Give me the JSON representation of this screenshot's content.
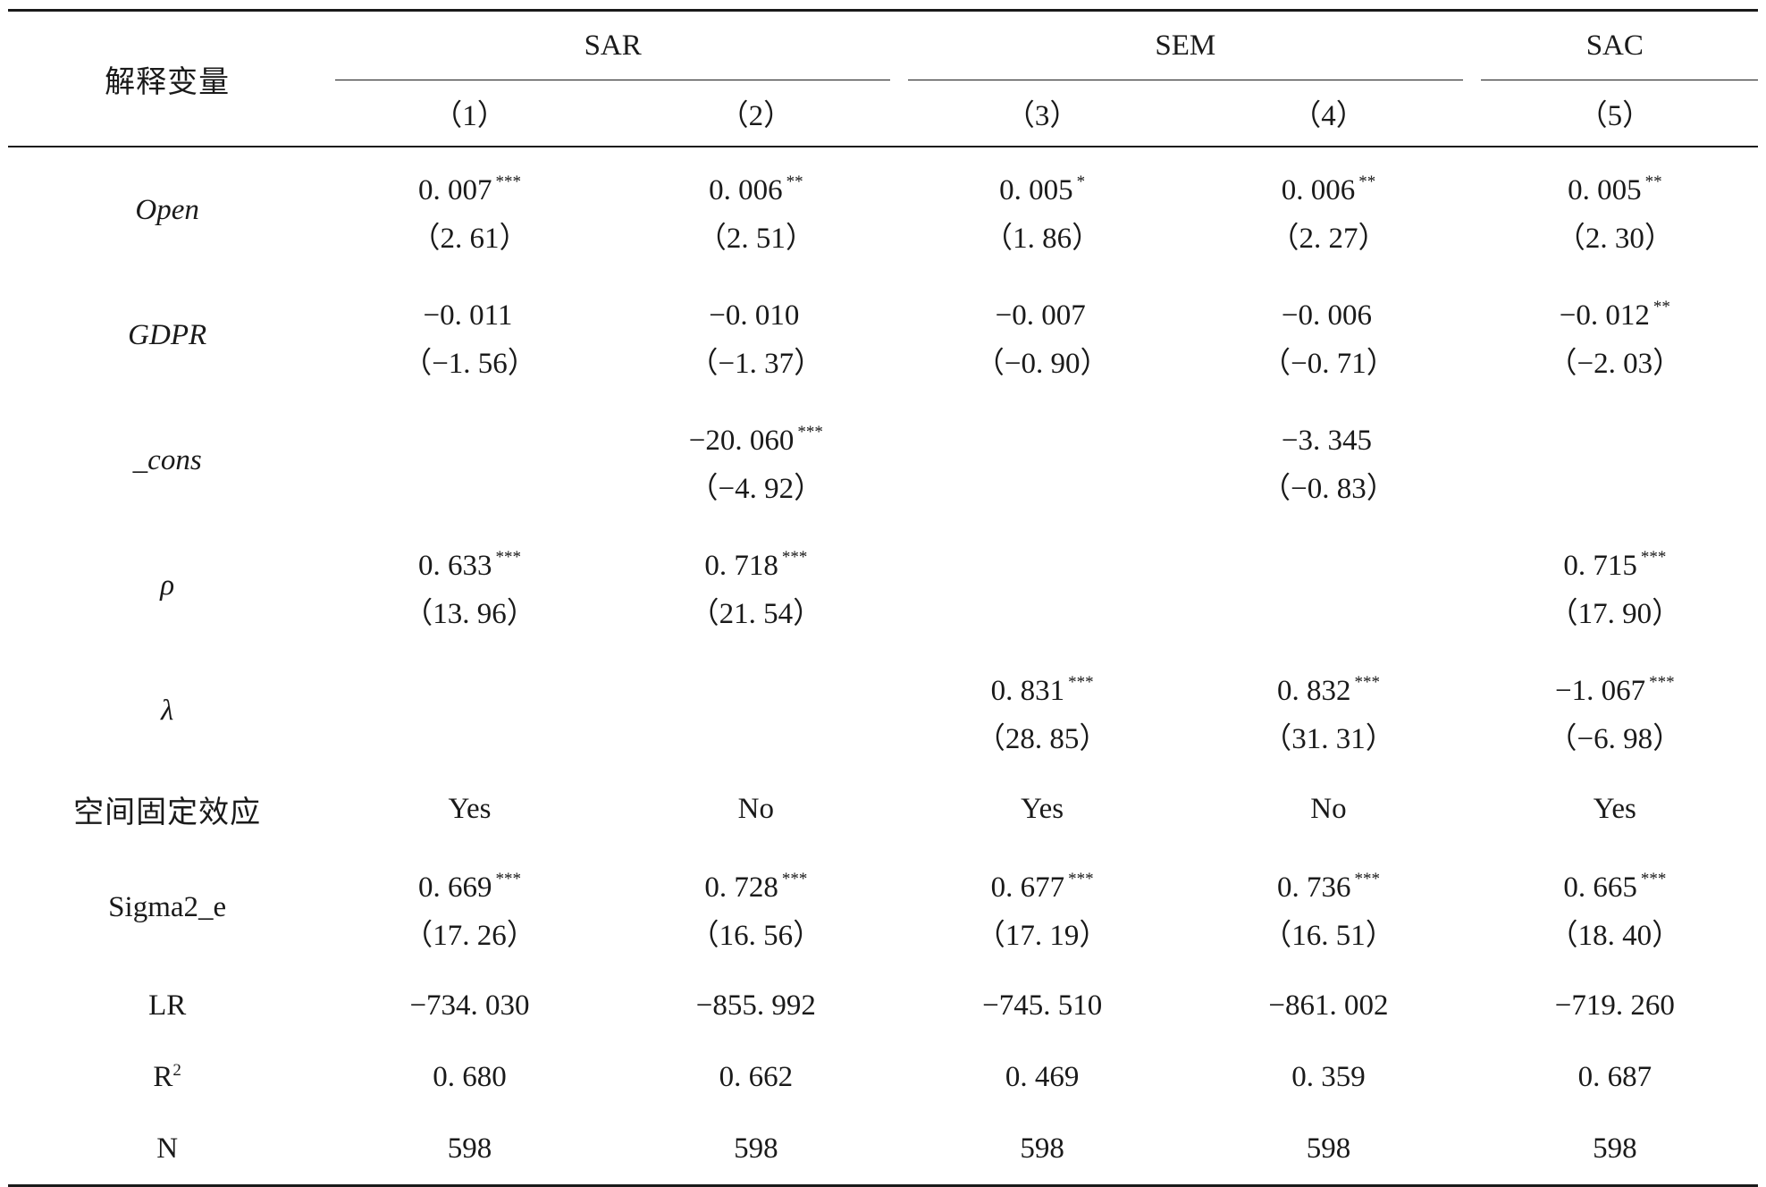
{
  "header": {
    "row_label": "解释变量",
    "groups": [
      {
        "name": "SAR",
        "cols": [
          "（1）",
          "（2）"
        ]
      },
      {
        "name": "SEM",
        "cols": [
          "（3）",
          "（4）"
        ]
      },
      {
        "name": "SAC",
        "cols": [
          "（5）"
        ]
      }
    ]
  },
  "rows": [
    {
      "label": "Open",
      "cells": [
        {
          "coef": "0. 007",
          "stars": "***",
          "t": "（2. 61）"
        },
        {
          "coef": "0. 006",
          "stars": "**",
          "t": "（2. 51）"
        },
        {
          "coef": "0. 005",
          "stars": "*",
          "t": "（1. 86）"
        },
        {
          "coef": "0. 006",
          "stars": "**",
          "t": "（2. 27）"
        },
        {
          "coef": "0. 005",
          "stars": "**",
          "t": "（2. 30）"
        }
      ]
    },
    {
      "label": "GDPR",
      "cells": [
        {
          "coef": "−0. 011",
          "stars": "",
          "t": "（−1. 56）"
        },
        {
          "coef": "−0. 010",
          "stars": "",
          "t": "（−1. 37）"
        },
        {
          "coef": "−0. 007",
          "stars": "",
          "t": "（−0. 90）"
        },
        {
          "coef": "−0. 006",
          "stars": "",
          "t": "（−0. 71）"
        },
        {
          "coef": "−0. 012",
          "stars": "**",
          "t": "（−2. 03）"
        }
      ]
    },
    {
      "label": "_cons",
      "cells": [
        {
          "coef": "",
          "stars": "",
          "t": ""
        },
        {
          "coef": "−20. 060",
          "stars": "***",
          "t": "（−4. 92）"
        },
        {
          "coef": "",
          "stars": "",
          "t": ""
        },
        {
          "coef": "−3. 345",
          "stars": "",
          "t": "（−0. 83）"
        },
        {
          "coef": "",
          "stars": "",
          "t": ""
        }
      ]
    },
    {
      "label": "ρ",
      "cells": [
        {
          "coef": "0. 633",
          "stars": "***",
          "t": "（13. 96）"
        },
        {
          "coef": "0. 718",
          "stars": "***",
          "t": "（21. 54）"
        },
        {
          "coef": "",
          "stars": "",
          "t": ""
        },
        {
          "coef": "",
          "stars": "",
          "t": ""
        },
        {
          "coef": "0. 715",
          "stars": "***",
          "t": "（17. 90）"
        }
      ]
    },
    {
      "label": "λ",
      "cells": [
        {
          "coef": "",
          "stars": "",
          "t": ""
        },
        {
          "coef": "",
          "stars": "",
          "t": ""
        },
        {
          "coef": "0. 831",
          "stars": "***",
          "t": "（28. 85）"
        },
        {
          "coef": "0. 832",
          "stars": "***",
          "t": "（31. 31）"
        },
        {
          "coef": "−1. 067",
          "stars": "***",
          "t": "（−6. 98）"
        }
      ]
    },
    {
      "label": "空间固定效应",
      "values": [
        "Yes",
        "No",
        "Yes",
        "No",
        "Yes"
      ]
    },
    {
      "label": "Sigma2_e",
      "cells": [
        {
          "coef": "0. 669",
          "stars": "***",
          "t": "（17. 26）"
        },
        {
          "coef": "0. 728",
          "stars": "***",
          "t": "（16. 56）"
        },
        {
          "coef": "0. 677",
          "stars": "***",
          "t": "（17. 19）"
        },
        {
          "coef": "0. 736",
          "stars": "***",
          "t": "（16. 51）"
        },
        {
          "coef": "0. 665",
          "stars": "***",
          "t": "（18. 40）"
        }
      ]
    },
    {
      "label": "LR",
      "values": [
        "−734. 030",
        "−855. 992",
        "−745. 510",
        "−861. 002",
        "−719. 260"
      ]
    },
    {
      "label": "R",
      "label_sup": "2",
      "values": [
        "0. 680",
        "0. 662",
        "0. 469",
        "0. 359",
        "0. 687"
      ]
    },
    {
      "label": "N",
      "values": [
        "598",
        "598",
        "598",
        "598",
        "598"
      ]
    }
  ]
}
